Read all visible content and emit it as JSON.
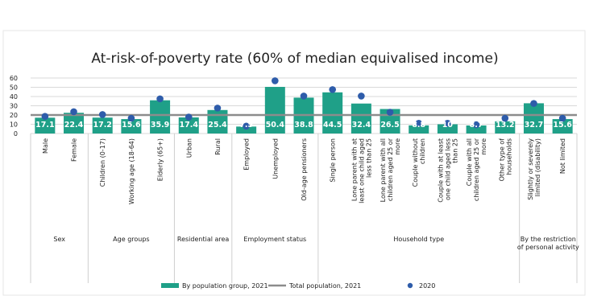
{
  "chart_data": {
    "type": "bar",
    "title": "At-risk-of-poverty rate (60% of median equivalised income)",
    "y_ticks": [
      "0",
      "10",
      "20",
      "30",
      "40",
      "50",
      "60"
    ],
    "ylim": [
      0,
      60
    ],
    "grid": true,
    "legend_position": "bottom",
    "total_population_2021": 20,
    "categories": [
      "Male",
      "Female",
      "Children (0-17)",
      "Working age (18-64)",
      "Elderly (65+)",
      "Urban",
      "Rural",
      "Employed",
      "Unemployed",
      "Old-age pensioners",
      "Single person",
      "Lone parent with at least one child aged less than 25",
      "Lone parent with all children aged 25 or more",
      "Couple without children",
      "Couple with at least one child aged less than 25",
      "Couple with all children aged 25 or more",
      "Other type of households",
      "Slightly or severely limited (disability)",
      "Not limited"
    ],
    "value_labels": [
      "17.1",
      "22.4",
      "17.2",
      "15.6",
      "35.9",
      "17.4",
      "25.4",
      "7.5",
      "50.4",
      "38.8",
      "44.5",
      "32.4",
      "26.5",
      "8.8",
      "10",
      "8.7",
      "13.2",
      "32.7",
      "15.6"
    ],
    "series": [
      {
        "name": "By population group, 2021",
        "values": [
          17.1,
          22.4,
          17.2,
          15.6,
          35.9,
          17.4,
          25.4,
          7.5,
          50.4,
          38.8,
          44.5,
          32.4,
          26.5,
          8.8,
          10,
          8.7,
          13.2,
          32.7,
          15.6
        ]
      },
      {
        "name": "2020",
        "values": [
          18.5,
          23.5,
          20.5,
          16.5,
          37.5,
          17.8,
          27.5,
          8,
          57,
          40.5,
          47.5,
          40.5,
          23,
          11,
          11,
          9.5,
          16.5,
          32.5,
          16.5
        ]
      }
    ],
    "groups": [
      {
        "label": "Sex",
        "count": 2
      },
      {
        "label": "Age groups",
        "count": 3
      },
      {
        "label": "Residential area",
        "count": 2
      },
      {
        "label": "Employment status",
        "count": 3
      },
      {
        "label": "Household type",
        "count": 7
      },
      {
        "label": "By the restriction of personal activity",
        "count": 2
      }
    ],
    "legend": [
      {
        "label": "By population group, 2021",
        "kind": "bar"
      },
      {
        "label": "Total population, 2021",
        "kind": "line"
      },
      {
        "label": "2020",
        "kind": "dot"
      }
    ],
    "colors": {
      "bar": "#1fa088",
      "total_line": "#8c8c8c",
      "dot": "#2e5caa",
      "grid": "#d9d9d9",
      "label_text": "#ffffff",
      "frame": "#ececec"
    }
  }
}
